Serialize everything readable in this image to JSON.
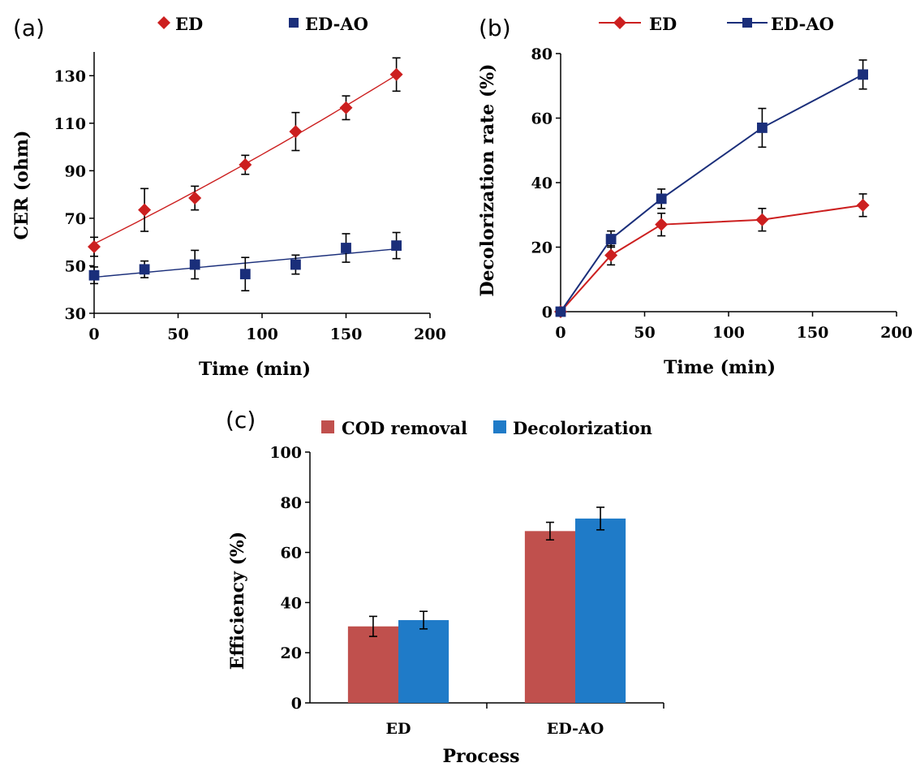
{
  "chart_data": [
    {
      "panel": "(a)",
      "type": "scatter",
      "xlabel": "Time (min)",
      "ylabel": "CER (ohm)",
      "xlim": [
        0,
        200
      ],
      "ylim": [
        30,
        140
      ],
      "xticks": [
        "0",
        "50",
        "100",
        "150",
        "200"
      ],
      "yticks": [
        "30",
        "50",
        "70",
        "90",
        "110",
        "130"
      ],
      "legend_position": "top",
      "series": [
        {
          "name": "ED",
          "color": "#cc1f1f",
          "marker": "diamond",
          "trendline": "curve",
          "x": [
            0,
            30,
            60,
            90,
            120,
            150,
            180
          ],
          "y": [
            58,
            73.5,
            78.5,
            92.5,
            106.5,
            116.5,
            130.5
          ],
          "err": [
            4,
            9,
            5,
            4,
            8,
            5,
            7
          ]
        },
        {
          "name": "ED-AO",
          "color": "#1a2e7a",
          "marker": "square",
          "trendline": "line",
          "x": [
            0,
            30,
            60,
            90,
            120,
            150,
            180
          ],
          "y": [
            46,
            48.5,
            50.5,
            46.5,
            50.5,
            57.5,
            58.5
          ],
          "err": [
            3.5,
            3.5,
            6,
            7,
            4,
            6,
            5.5
          ]
        }
      ]
    },
    {
      "panel": "(b)",
      "type": "line",
      "xlabel": "Time (min)",
      "ylabel": "Decolorization rate (%)",
      "xlim": [
        0,
        200
      ],
      "ylim": [
        0,
        80
      ],
      "xticks": [
        "0",
        "50",
        "100",
        "150",
        "200"
      ],
      "yticks": [
        "0",
        "20",
        "40",
        "60",
        "80"
      ],
      "legend_position": "top",
      "series": [
        {
          "name": "ED",
          "color": "#cc1f1f",
          "marker": "diamond",
          "x": [
            0,
            30,
            60,
            120,
            180
          ],
          "y": [
            0,
            17.5,
            27,
            28.5,
            33
          ],
          "err": [
            0,
            3,
            3.5,
            3.5,
            3.5
          ]
        },
        {
          "name": "ED-AO",
          "color": "#1a2e7a",
          "marker": "square",
          "x": [
            0,
            30,
            60,
            120,
            180
          ],
          "y": [
            0,
            22.5,
            35,
            57,
            73.5
          ],
          "err": [
            0,
            2.5,
            3,
            6,
            4.5
          ]
        }
      ]
    },
    {
      "panel": "(c)",
      "type": "bar",
      "xlabel": "Process",
      "ylabel": "Efficiency  (%)",
      "ylim": [
        0,
        100
      ],
      "yticks": [
        "0",
        "20",
        "40",
        "60",
        "80",
        "100"
      ],
      "categories": [
        "ED",
        "ED-AO"
      ],
      "legend_position": "top",
      "series": [
        {
          "name": "COD removal",
          "color": "#c0504d",
          "values": [
            30.5,
            68.5
          ],
          "err": [
            4,
            3.5
          ]
        },
        {
          "name": "Decolorization",
          "color": "#1f7bc8",
          "values": [
            33,
            73.5
          ],
          "err": [
            3.5,
            4.5
          ]
        }
      ]
    }
  ]
}
